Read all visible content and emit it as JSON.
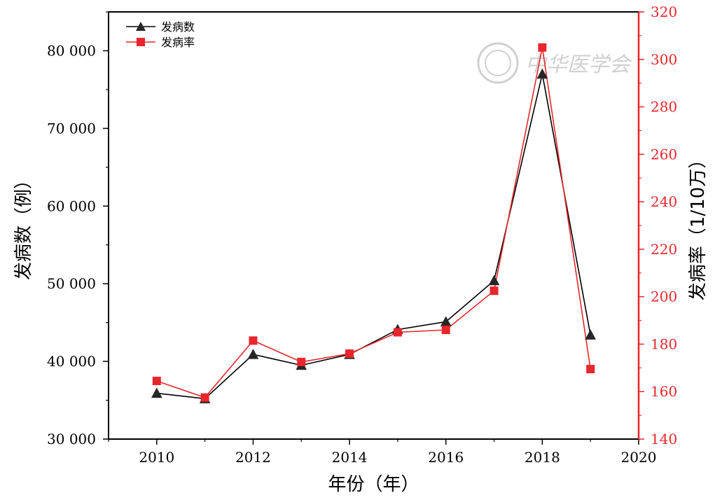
{
  "chart_data": {
    "type": "line",
    "x": [
      2010,
      2011,
      2012,
      2013,
      2014,
      2015,
      2016,
      2017,
      2018,
      2019
    ],
    "series": [
      {
        "name": "发病数",
        "axis": "left",
        "color": "#000000",
        "marker": "triangle",
        "values": [
          35900,
          35200,
          40900,
          39500,
          40900,
          44100,
          45100,
          50400,
          77000,
          43400
        ]
      },
      {
        "name": "发病率",
        "axis": "right",
        "color": "#e8262b",
        "marker": "square",
        "values": [
          164.5,
          157.5,
          181.5,
          172.5,
          176,
          185,
          186,
          202.5,
          305,
          169.5
        ]
      }
    ],
    "xlabel": "年份（年）",
    "ylabel_left": "发病数（例）",
    "ylabel_right": "发病率（1/10万）",
    "xlim": [
      2009,
      2020
    ],
    "ylim_left": [
      30000,
      85000
    ],
    "ylim_right": [
      140,
      320
    ],
    "x_ticks": [
      2010,
      2012,
      2014,
      2016,
      2018,
      2020
    ],
    "x_tick_labels": [
      "2010",
      "2012",
      "2014",
      "2016",
      "2018",
      "2020"
    ],
    "y_left_ticks": [
      30000,
      40000,
      50000,
      60000,
      70000,
      80000
    ],
    "y_left_tick_labels": [
      "30 000",
      "40 000",
      "50 000",
      "60 000",
      "70 000",
      "80 000"
    ],
    "y_right_ticks": [
      140,
      160,
      180,
      200,
      220,
      240,
      260,
      280,
      300,
      320
    ],
    "y_right_tick_labels": [
      "140",
      "160",
      "180",
      "200",
      "220",
      "240",
      "260",
      "280",
      "300",
      "320"
    ],
    "legend_position": "top-left",
    "grid": false,
    "right_axis_color": "#e8262b"
  },
  "watermark": {
    "text": "中华医学会"
  }
}
